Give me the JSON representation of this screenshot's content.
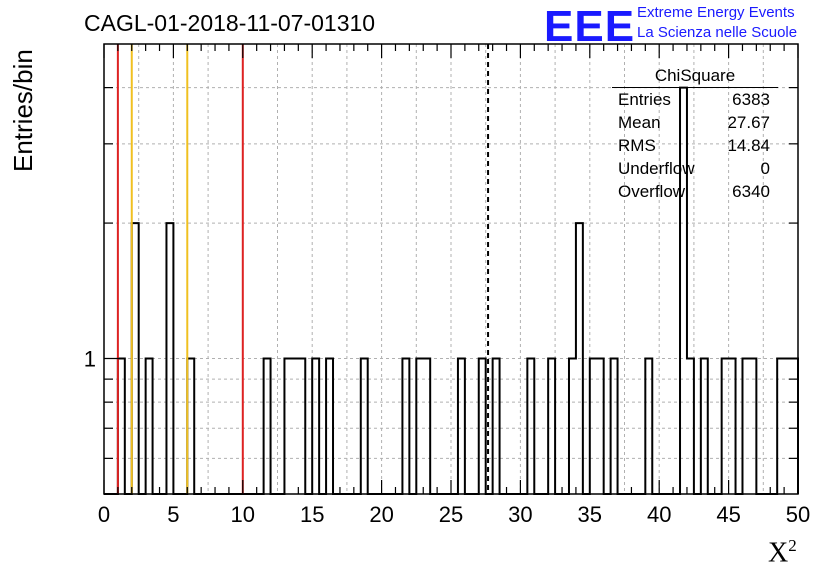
{
  "title": "CAGL-01-2018-11-07-01310",
  "logo": {
    "mark": "EEE",
    "line1": "Extreme Energy Events",
    "line2": "La Scienza nelle Scuole",
    "color": "#1a1aff"
  },
  "stats": {
    "name": "ChiSquare",
    "rows": [
      {
        "label": "Entries",
        "value": "6383"
      },
      {
        "label": "Mean",
        "value": "27.67"
      },
      {
        "label": "RMS",
        "value": "14.84"
      },
      {
        "label": "Underflow",
        "value": "0"
      },
      {
        "label": "Overflow",
        "value": "6340"
      }
    ]
  },
  "chart_data": {
    "type": "bar",
    "xlabel": "X",
    "xlabel_sup": "2",
    "ylabel": "Entries/bin",
    "xlim": [
      0,
      50
    ],
    "ylim": [
      0.5,
      5
    ],
    "log_y": true,
    "grid": true,
    "bin_width": 0.5,
    "xticks": [
      "0",
      "5",
      "10",
      "15",
      "20",
      "25",
      "30",
      "35",
      "40",
      "45",
      "50"
    ],
    "yticks": [
      "1"
    ],
    "bins": [
      [
        1,
        1
      ],
      [
        2,
        2
      ],
      [
        3,
        1
      ],
      [
        4.5,
        2
      ],
      [
        6,
        1
      ],
      [
        11.5,
        1
      ],
      [
        13,
        1
      ],
      [
        13.5,
        1
      ],
      [
        14,
        1
      ],
      [
        15,
        1
      ],
      [
        16,
        1
      ],
      [
        18.5,
        1
      ],
      [
        21.5,
        1
      ],
      [
        22.5,
        1
      ],
      [
        23,
        1
      ],
      [
        25.5,
        1
      ],
      [
        27,
        1
      ],
      [
        28,
        1
      ],
      [
        30.5,
        1
      ],
      [
        32,
        1
      ],
      [
        33.5,
        1
      ],
      [
        34,
        2
      ],
      [
        35,
        1
      ],
      [
        35.5,
        1
      ],
      [
        36.5,
        1
      ],
      [
        39,
        1
      ],
      [
        41.5,
        4
      ],
      [
        42,
        1
      ],
      [
        43,
        1
      ],
      [
        44.5,
        1
      ],
      [
        45,
        1
      ],
      [
        46,
        1
      ],
      [
        46.5,
        1
      ],
      [
        48.5,
        1
      ],
      [
        49,
        1
      ],
      [
        49.5,
        1
      ]
    ],
    "vlines": [
      {
        "x": 1,
        "color": "#dd2222",
        "style": "solid"
      },
      {
        "x": 2,
        "color": "#f0c020",
        "style": "solid"
      },
      {
        "x": 6,
        "color": "#f0c020",
        "style": "solid"
      },
      {
        "x": 10,
        "color": "#dd2222",
        "style": "solid"
      },
      {
        "x": 27.67,
        "color": "#000000",
        "style": "dashed"
      }
    ]
  }
}
